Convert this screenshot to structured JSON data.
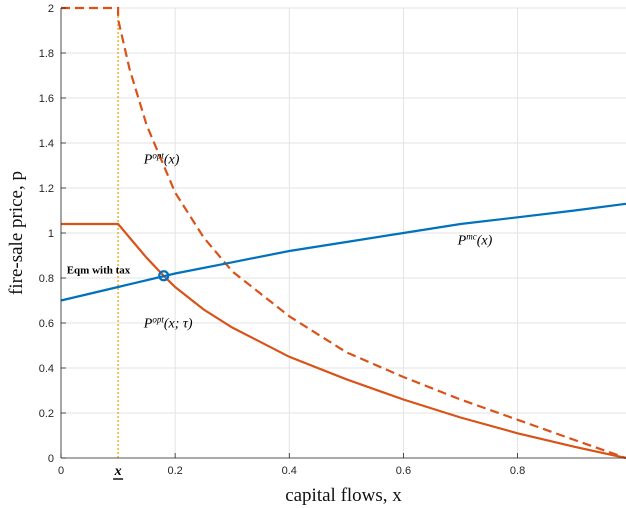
{
  "chart_data": {
    "type": "line",
    "xlabel": "capital flows, x",
    "ylabel": "fire-sale price, p",
    "xlim": [
      0,
      0.99
    ],
    "ylim": [
      0,
      2
    ],
    "xticks": [
      0,
      0.2,
      0.4,
      0.6,
      0.8
    ],
    "xtick_labels": [
      "0",
      "0.2",
      "0.4",
      "0.6",
      "0.8"
    ],
    "yticks": [
      0,
      0.2,
      0.4,
      0.6,
      0.8,
      1,
      1.2,
      1.4,
      1.6,
      1.8,
      2
    ],
    "ytick_labels": [
      "0",
      "0.2",
      "0.4",
      "0.6",
      "0.8",
      "1",
      "1.2",
      "1.4",
      "1.6",
      "1.8",
      "2"
    ],
    "grid": true,
    "special_tick": {
      "x": 0.1,
      "label": "x"
    },
    "series": [
      {
        "name": "Popt(x)",
        "color": "#D95319",
        "style": "dashed",
        "x": [
          0,
          0.1,
          0.1,
          0.12,
          0.15,
          0.2,
          0.25,
          0.3,
          0.4,
          0.5,
          0.6,
          0.7,
          0.8,
          0.9,
          0.99
        ],
        "y": [
          2.0,
          2.0,
          1.95,
          1.73,
          1.48,
          1.18,
          0.98,
          0.83,
          0.63,
          0.47,
          0.36,
          0.26,
          0.17,
          0.08,
          0.0
        ]
      },
      {
        "name": "Popt(x;τ)",
        "color": "#D95319",
        "style": "solid",
        "x": [
          0,
          0.1,
          0.12,
          0.15,
          0.18,
          0.2,
          0.25,
          0.3,
          0.4,
          0.5,
          0.6,
          0.7,
          0.8,
          0.9,
          0.99
        ],
        "y": [
          1.04,
          1.04,
          0.98,
          0.89,
          0.81,
          0.76,
          0.66,
          0.58,
          0.45,
          0.35,
          0.26,
          0.18,
          0.11,
          0.05,
          0.0
        ]
      },
      {
        "name": "Pmc(x)",
        "color": "#0072BD",
        "style": "solid",
        "x": [
          0,
          0.1,
          0.2,
          0.3,
          0.4,
          0.5,
          0.6,
          0.7,
          0.8,
          0.9,
          0.99
        ],
        "y": [
          0.7,
          0.76,
          0.82,
          0.87,
          0.92,
          0.96,
          1.0,
          1.04,
          1.07,
          1.1,
          1.13
        ]
      }
    ],
    "vline": {
      "x": 0.1,
      "color": "#EDB120",
      "style": "dotted"
    },
    "equilibrium_point": {
      "x": 0.18,
      "y": 0.81,
      "color": "#0072BD"
    },
    "annotations": [
      {
        "id": "popt",
        "text_main": "P",
        "text_sup": "opt",
        "text_arg": "(x)",
        "x": 0.145,
        "y": 1.31
      },
      {
        "id": "popt_tau",
        "text_main": "P",
        "text_sup": "opt",
        "text_arg": "(x; τ)",
        "x": 0.145,
        "y": 0.58
      },
      {
        "id": "pmc",
        "text_main": "P",
        "text_sup": "mc",
        "text_arg": "(x)",
        "x": 0.695,
        "y": 0.95
      },
      {
        "id": "eqm",
        "text": "Eqm with tax",
        "x": 0.01,
        "y": 0.82
      }
    ]
  }
}
